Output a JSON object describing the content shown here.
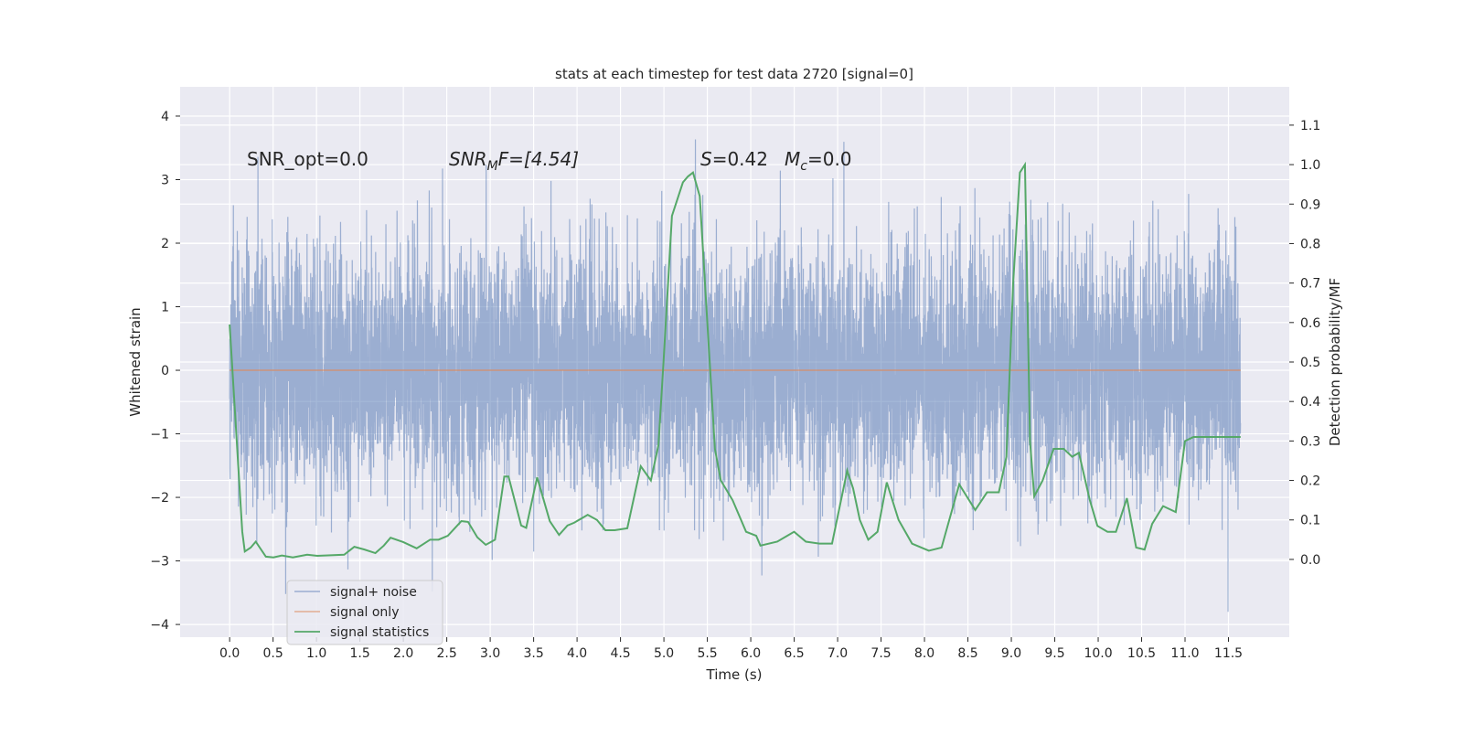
{
  "chart_data": {
    "type": "line",
    "title": "stats at each timestep for test data 2720 [signal=0]",
    "xlabel": "Time (s)",
    "ylabel": "Whitened strain",
    "ylabel_right": "Detection probability/MF",
    "xlim": [
      -0.57,
      12.2
    ],
    "ylim": [
      -4.2,
      4.46
    ],
    "ylim_right": [
      -0.197,
      1.197
    ],
    "grid": true,
    "x_ticks": [
      "0.0",
      "0.5",
      "1.0",
      "1.5",
      "2.0",
      "2.5",
      "3.0",
      "3.5",
      "4.0",
      "4.5",
      "5.0",
      "5.5",
      "6.0",
      "6.5",
      "7.0",
      "7.5",
      "8.0",
      "8.5",
      "9.0",
      "9.5",
      "10.0",
      "10.5",
      "11.0",
      "11.5"
    ],
    "y_ticks": [
      "-4",
      "-3",
      "-2",
      "-1",
      "0",
      "1",
      "2",
      "3",
      "4"
    ],
    "y_ticks_right": [
      "0.0",
      "0.1",
      "0.2",
      "0.3",
      "0.4",
      "0.5",
      "0.6",
      "0.7",
      "0.8",
      "0.9",
      "1.0",
      "1.1"
    ],
    "annotations": {
      "snr_opt": "SNR_opt=0.0",
      "snr_mf_main": "SNR",
      "snr_mf_sub": "M",
      "snr_mf_rest": "F=[4.54]",
      "s_label": "S",
      "s_value": "=0.42",
      "mc_main": "M",
      "mc_sub": "c",
      "mc_value": "=0.0"
    },
    "legend": {
      "placement": "lower-left",
      "entries": [
        "signal+ noise",
        "signal only",
        "signal statistics"
      ]
    },
    "colors": {
      "noise": "#4c72b0",
      "signal": "#dd8452",
      "stats": "#55a868",
      "bg": "#eaeaf2"
    },
    "series": [
      {
        "name": "signal+ noise",
        "axis": "left",
        "description_range": [
          -3.8,
          4.1
        ],
        "duration": 11.64
      },
      {
        "name": "signal only",
        "axis": "left",
        "x": [
          0,
          11.64
        ],
        "y": [
          0,
          0
        ]
      },
      {
        "name": "signal statistics",
        "axis": "right",
        "x": [
          0,
          0.15,
          0.18,
          0.25,
          0.31,
          0.43,
          0.52,
          0.62,
          0.75,
          0.92,
          1.04,
          1.36,
          1.48,
          1.6,
          1.73,
          1.83,
          1.91,
          2.06,
          2.22,
          2.38,
          2.48,
          2.59,
          2.75,
          2.83,
          2.94,
          3.04,
          3.15,
          3.26,
          3.31,
          3.46,
          3.52,
          3.65,
          3.8,
          3.91,
          4.01,
          4.09,
          4.25,
          4.36,
          4.46,
          4.57,
          4.72,
          4.88,
          5.0,
          5.09,
          5.15,
          5.25,
          5.38,
          5.44,
          5.5,
          5.58,
          5.76,
          5.83,
          5.97,
          6.13,
          6.25,
          6.3,
          6.5,
          6.62,
          6.7,
          6.84,
          7.0,
          7.15,
          7.33,
          7.4,
          7.48,
          7.58,
          7.69,
          7.8,
          7.94,
          8.1,
          8.3,
          8.45,
          8.66,
          8.85,
          8.99,
          9.13,
          9.22,
          9.3,
          9.38,
          9.44,
          9.5,
          9.55,
          9.65,
          9.78,
          9.9,
          10.0,
          10.08,
          10.21,
          10.3,
          10.42,
          10.52,
          10.65,
          10.76,
          10.86,
          10.95,
          11.08,
          11.23,
          11.34,
          11.44,
          11.55,
          11.67,
          11.77,
          11.92,
          12.0
        ],
        "y": [
          0.595,
          0.07,
          0.02,
          0.03,
          0.045,
          0.007,
          0.005,
          0.01,
          0.005,
          0.012,
          0.009,
          0.012,
          0.032,
          0.025,
          0.016,
          0.035,
          0.055,
          0.044,
          0.028,
          0.05,
          0.05,
          0.06,
          0.097,
          0.095,
          0.056,
          0.037,
          0.05,
          0.21,
          0.21,
          0.086,
          0.08,
          0.208,
          0.097,
          0.062,
          0.086,
          0.093,
          0.113,
          0.1,
          0.074,
          0.074,
          0.079,
          0.236,
          0.2,
          0.29,
          0.5,
          0.87,
          0.955,
          0.97,
          0.98,
          0.92,
          0.28,
          0.2,
          0.15,
          0.07,
          0.06,
          0.035,
          0.045,
          0.06,
          0.07,
          0.045,
          0.04,
          0.04,
          0.225,
          0.18,
          0.1,
          0.05,
          0.07,
          0.195,
          0.1,
          0.04,
          0.022,
          0.03,
          0.19,
          0.125,
          0.17,
          0.17,
          0.26,
          0.7,
          0.98,
          1.0,
          0.3,
          0.16,
          0.2,
          0.28,
          0.28,
          0.26,
          0.27,
          0.15,
          0.085,
          0.07,
          0.07,
          0.155,
          0.03,
          0.025,
          0.09,
          0.135,
          0.12,
          0.3,
          0.31,
          0.31,
          0.31,
          0.31,
          0.31,
          0.31
        ]
      }
    ]
  }
}
